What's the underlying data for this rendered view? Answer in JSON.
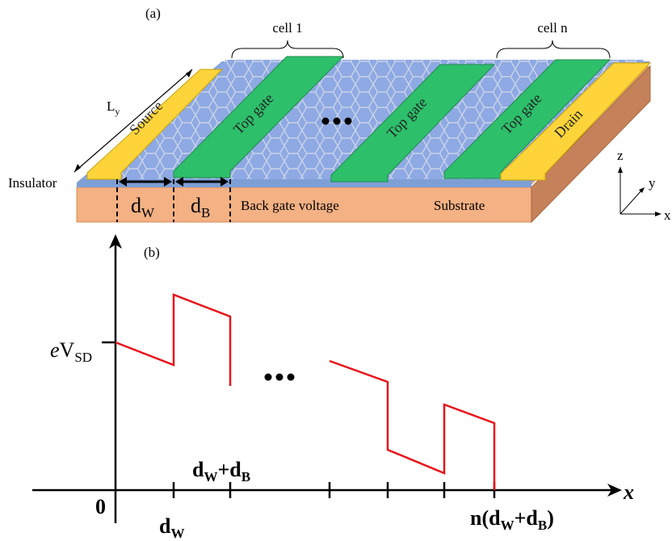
{
  "panel_a": {
    "label": "(a)",
    "cells": [
      "cell 1",
      "cell n"
    ],
    "length": {
      "parts": [
        "L",
        "y"
      ]
    },
    "electrodes": [
      "Source",
      "Top gate",
      "Top gate",
      "Top gate",
      "Drain"
    ],
    "insulator": "Insulator",
    "widths": [
      {
        "parts": [
          "d",
          "W"
        ]
      },
      {
        "parts": [
          "d",
          "B"
        ]
      }
    ],
    "back_gate": "Back gate voltage",
    "substrate": "Substrate",
    "axes": [
      "z",
      "y",
      "x"
    ]
  },
  "panel_b": {
    "label": "(b)",
    "y_label": {
      "parts": [
        "e",
        "V",
        "SD"
      ]
    },
    "origin": "0",
    "x_ticks": [
      {
        "parts": [
          "d",
          "W"
        ]
      },
      {
        "parts": [
          "d",
          "W",
          "+d",
          "B"
        ]
      },
      {
        "parts": [
          "n(d",
          "W",
          "+d",
          "B",
          ")"
        ]
      }
    ],
    "x_label": "x"
  }
}
